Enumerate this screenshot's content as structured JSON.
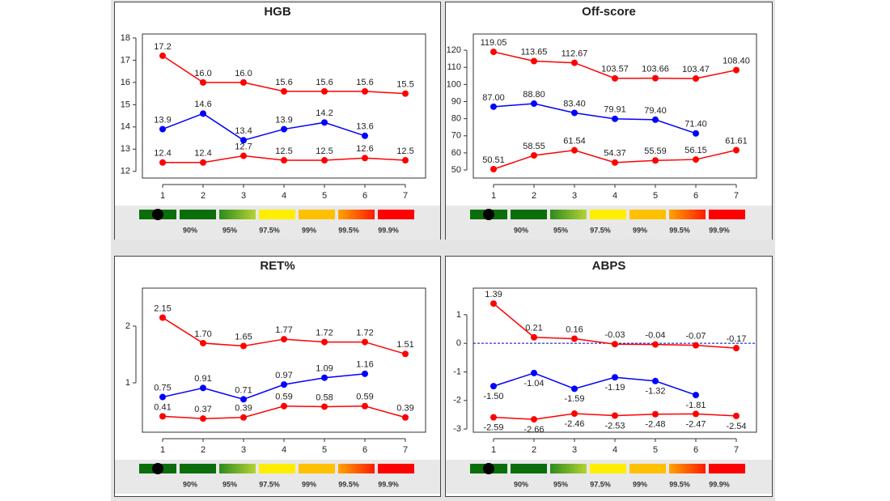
{
  "chart_data": [
    {
      "type": "line",
      "title": "HGB",
      "categories": [
        "1",
        "2",
        "3",
        "4",
        "5",
        "6",
        "7"
      ],
      "ylim": [
        11.7,
        18.18
      ],
      "yticks": [
        12,
        13,
        14,
        15,
        16,
        17,
        18
      ],
      "series": [
        {
          "color": "#ff0000",
          "values": [
            17.2,
            16.0,
            16.0,
            15.6,
            15.6,
            15.6,
            15.5
          ],
          "value_labels": [
            "17.2",
            "16.0",
            "16.0",
            "15.6",
            "15.6",
            "15.6",
            "15.5"
          ]
        },
        {
          "color": "#0000ff",
          "values": [
            13.9,
            14.6,
            13.4,
            13.9,
            14.2,
            13.6,
            null
          ],
          "value_labels": [
            "13.9",
            "14.6",
            "13.4",
            "13.9",
            "14.2",
            "13.6",
            null
          ]
        },
        {
          "color": "#ff0000",
          "values": [
            12.4,
            12.4,
            12.7,
            12.5,
            12.5,
            12.6,
            12.5
          ],
          "value_labels": [
            "12.4",
            "12.4",
            "12.7",
            "12.5",
            "12.5",
            "12.6",
            "12.5"
          ]
        }
      ],
      "legend_labels": [
        "90%",
        "95%",
        "97.5%",
        "99%",
        "99.5%",
        "99.9%"
      ]
    },
    {
      "type": "line",
      "title": "Off-score",
      "categories": [
        "1",
        "2",
        "3",
        "4",
        "5",
        "6",
        "7"
      ],
      "ylim": [
        45.3,
        129.5
      ],
      "yticks": [
        50,
        60,
        70,
        80,
        90,
        100,
        110,
        120
      ],
      "series": [
        {
          "color": "#ff0000",
          "values": [
            119.05,
            113.65,
            112.67,
            103.57,
            103.66,
            103.47,
            108.4
          ],
          "value_labels": [
            "119.05",
            "113.65",
            "112.67",
            "103.57",
            "103.66",
            "103.47",
            "108.40"
          ]
        },
        {
          "color": "#0000ff",
          "values": [
            87.0,
            88.8,
            83.4,
            79.91,
            79.4,
            71.4,
            null
          ],
          "value_labels": [
            "87.00",
            "88.80",
            "83.40",
            "79.91",
            "79.40",
            "71.40",
            null
          ]
        },
        {
          "color": "#ff0000",
          "values": [
            50.51,
            58.55,
            61.54,
            54.37,
            55.59,
            56.15,
            61.61
          ],
          "value_labels": [
            "50.51",
            "58.55",
            "61.54",
            "54.37",
            "55.59",
            "56.15",
            "61.61"
          ]
        }
      ],
      "legend_labels": [
        "90%",
        "95%",
        "97.5%",
        "99%",
        "99.5%",
        "99.9%"
      ]
    },
    {
      "type": "line",
      "title": "RET%",
      "categories": [
        "1",
        "2",
        "3",
        "4",
        "5",
        "6",
        "7"
      ],
      "ylim": [
        0.13,
        2.67
      ],
      "yticks": [
        1,
        2
      ],
      "series": [
        {
          "color": "#ff0000",
          "values": [
            2.15,
            1.7,
            1.65,
            1.77,
            1.72,
            1.72,
            1.51
          ],
          "value_labels": [
            "2.15",
            "1.70",
            "1.65",
            "1.77",
            "1.72",
            "1.72",
            "1.51"
          ]
        },
        {
          "color": "#0000ff",
          "values": [
            0.75,
            0.91,
            0.71,
            0.97,
            1.09,
            1.16,
            null
          ],
          "value_labels": [
            "0.75",
            "0.91",
            "0.71",
            "0.97",
            "1.09",
            "1.16",
            null
          ]
        },
        {
          "color": "#ff0000",
          "values": [
            0.41,
            0.37,
            0.39,
            0.59,
            0.58,
            0.59,
            0.39
          ],
          "value_labels": [
            "0.41",
            "0.37",
            "0.39",
            "0.59",
            "0.58",
            "0.59",
            "0.39"
          ]
        }
      ],
      "legend_labels": [
        "90%",
        "95%",
        "97.5%",
        "99%",
        "99.5%",
        "99.9%"
      ]
    },
    {
      "type": "line",
      "title": "ABPS",
      "categories": [
        "1",
        "2",
        "3",
        "4",
        "5",
        "6",
        "7"
      ],
      "ylim": [
        -3.11,
        1.93
      ],
      "yticks": [
        -3,
        -2,
        -1,
        0,
        1
      ],
      "reference_line": 0,
      "series": [
        {
          "color": "#ff0000",
          "values": [
            1.39,
            0.21,
            0.16,
            -0.03,
            -0.04,
            -0.07,
            -0.17
          ]
        },
        {
          "color": "#0000ff",
          "values": [
            -1.5,
            -1.04,
            -1.59,
            -1.19,
            -1.32,
            -1.81,
            null
          ],
          "value_labels": [
            "-1.50",
            "-1.04",
            "-1.59",
            "-1.19",
            "-1.32",
            "-1.81",
            null
          ]
        },
        {
          "color": "#ff0000",
          "values": [
            -2.59,
            -2.66,
            -2.46,
            -2.53,
            -2.48,
            -2.47,
            -2.54
          ]
        }
      ],
      "legend_labels": [
        "90%",
        "95%",
        "97.5%",
        "99%",
        "99.5%",
        "99.9%"
      ]
    }
  ]
}
